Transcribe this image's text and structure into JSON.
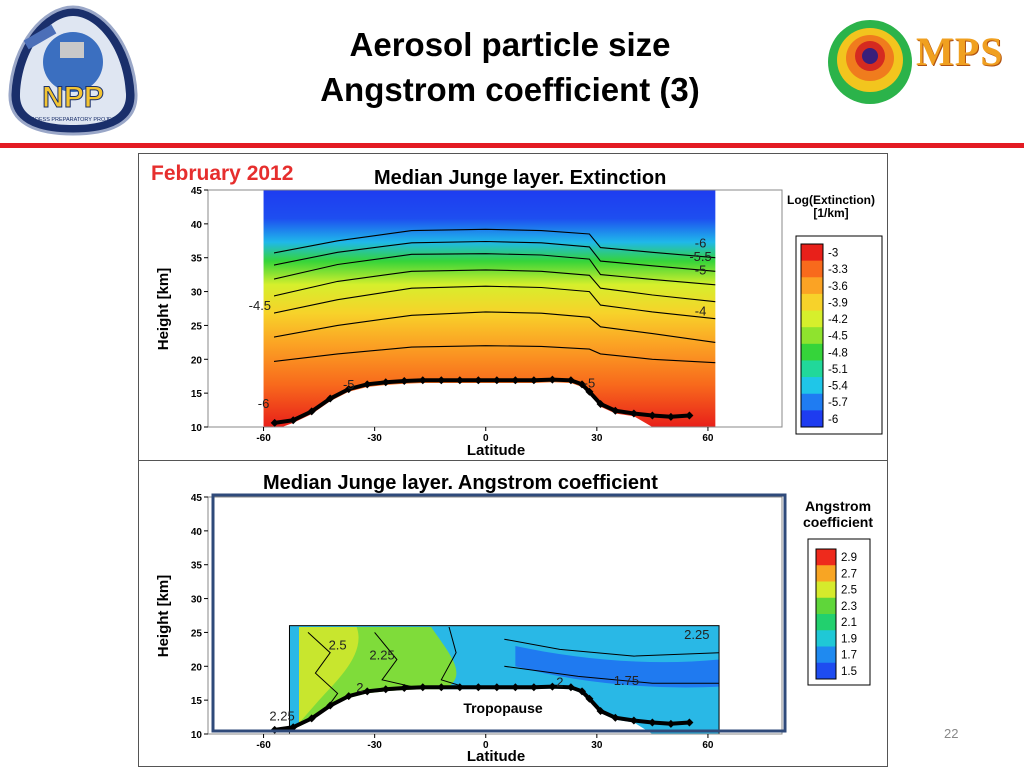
{
  "slide": {
    "title_line1": "Aerosol particle size",
    "title_line2": "Angstrom coefficient (3)",
    "page_number": "22",
    "accent_color": "#e31b23",
    "logo_left_text": "NPP",
    "logo_left_subtext": "NPOESS PREPARATORY PROJECT",
    "logo_right_text": "MPS"
  },
  "chart_data": [
    {
      "type": "heatmap",
      "title": "Median Junge layer. Extinction",
      "date_label": "February 2012",
      "xlabel": "Latitude",
      "ylabel": "Height [km]",
      "xlim": [
        -75,
        80
      ],
      "ylim": [
        10,
        45
      ],
      "x_ticks": [
        -60,
        -30,
        0,
        30,
        60
      ],
      "y_ticks": [
        10,
        15,
        20,
        25,
        30,
        35,
        40,
        45
      ],
      "colorbar": {
        "title_line1": "Log(Extinction)",
        "title_line2": "[1/km]",
        "levels": [
          "-3",
          "-3.3",
          "-3.6",
          "-3.9",
          "-4.2",
          "-4.5",
          "-4.8",
          "-5.1",
          "-5.4",
          "-5.7",
          "-6"
        ],
        "colors": [
          "#e8201a",
          "#f86a1c",
          "#fba324",
          "#f7d22a",
          "#d6ef2c",
          "#8fe32e",
          "#35d43a",
          "#21d89a",
          "#1fc6e8",
          "#1f7cf2",
          "#1e3cf0"
        ]
      },
      "contour_labels": [
        {
          "text": "-6",
          "lat": 58,
          "h": 36.5
        },
        {
          "text": "-5.5",
          "lat": 58,
          "h": 34.5
        },
        {
          "text": "-5",
          "lat": 58,
          "h": 32.5
        },
        {
          "text": "-4",
          "lat": 58,
          "h": 26.5
        },
        {
          "text": "-4.5",
          "lat": -61,
          "h": 27.3
        },
        {
          "text": "-5",
          "lat": -37,
          "h": 15.6
        },
        {
          "text": "-6",
          "lat": -60,
          "h": 12.8
        },
        {
          "text": "-5",
          "lat": 28,
          "h": 15.8
        }
      ],
      "tropopause": {
        "lat": [
          -57,
          -52,
          -47,
          -42,
          -37,
          -32,
          -27,
          -22,
          -17,
          -12,
          -7,
          -2,
          3,
          8,
          13,
          18,
          23,
          26,
          28,
          31,
          35,
          40,
          45,
          50,
          55
        ],
        "height": [
          10.6,
          11.0,
          12.3,
          14.2,
          15.6,
          16.3,
          16.6,
          16.8,
          16.9,
          16.9,
          16.9,
          16.9,
          16.9,
          16.9,
          16.9,
          17.0,
          16.9,
          16.3,
          15.2,
          13.4,
          12.4,
          12.0,
          11.7,
          11.5,
          11.7
        ]
      }
    },
    {
      "type": "heatmap",
      "title": "Median Junge layer. Angstrom coefficient",
      "xlabel": "Latitude",
      "ylabel": "Height [km]",
      "xlim": [
        -75,
        80
      ],
      "ylim": [
        10,
        45
      ],
      "x_ticks": [
        -60,
        -30,
        0,
        30,
        60
      ],
      "y_ticks": [
        10,
        15,
        20,
        25,
        30,
        35,
        40,
        45
      ],
      "colorbar": {
        "title_line1": "Angstrom",
        "title_line2": "coefficient",
        "levels": [
          "2.9",
          "2.7",
          "2.5",
          "2.3",
          "2.1",
          "1.9",
          "1.7",
          "1.5"
        ],
        "colors": [
          "#ee2a1c",
          "#f8a523",
          "#d6ea2c",
          "#5fd63a",
          "#22d06e",
          "#1fc8d6",
          "#1f8af0",
          "#1e4cf0"
        ]
      },
      "contour_labels": [
        {
          "text": "2.5",
          "lat": -40,
          "h": 22.5
        },
        {
          "text": "2.25",
          "lat": -28,
          "h": 21.0
        },
        {
          "text": "2.25",
          "lat": 57,
          "h": 24.0
        },
        {
          "text": "1.75",
          "lat": 38,
          "h": 17.2
        },
        {
          "text": "2",
          "lat": 20,
          "h": 17.0
        },
        {
          "text": "2",
          "lat": -34,
          "h": 16.2
        },
        {
          "text": "2.25",
          "lat": -55,
          "h": 12.0
        }
      ],
      "annotation": "Tropopause",
      "tropopause": {
        "lat": [
          -57,
          -52,
          -47,
          -42,
          -37,
          -32,
          -27,
          -22,
          -17,
          -12,
          -7,
          -2,
          3,
          8,
          13,
          18,
          23,
          26,
          28,
          31,
          35,
          40,
          45,
          50,
          55
        ],
        "height": [
          10.6,
          11.0,
          12.3,
          14.2,
          15.6,
          16.3,
          16.6,
          16.8,
          16.9,
          16.9,
          16.9,
          16.9,
          16.9,
          16.9,
          16.9,
          17.0,
          16.9,
          16.3,
          15.2,
          13.4,
          12.4,
          12.0,
          11.7,
          11.5,
          11.7
        ]
      }
    }
  ]
}
